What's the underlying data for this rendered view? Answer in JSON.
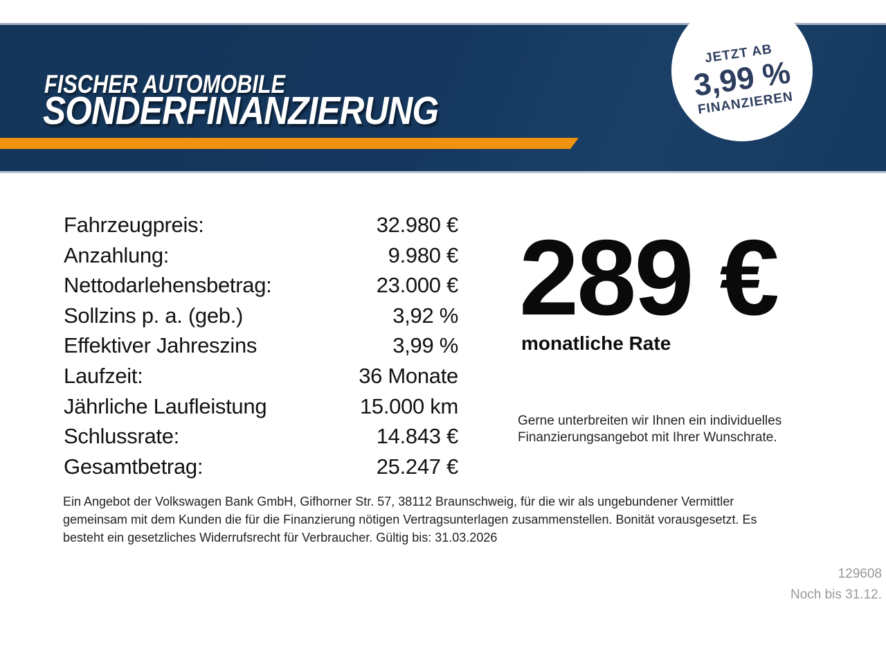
{
  "banner": {
    "dealer": "FISCHER AUTOMOBILE",
    "title": "SONDERFINANZIERUNG"
  },
  "badge": {
    "top": "JETZT AB",
    "rate": "3,99 %",
    "bottom": "FINANZIEREN"
  },
  "financing_table": {
    "rows": [
      {
        "label": "Fahrzeugpreis:",
        "value": "32.980 €"
      },
      {
        "label": "Anzahlung:",
        "value": "9.980 €"
      },
      {
        "label": "Nettodarlehensbetrag:",
        "value": "23.000 €"
      },
      {
        "label": "Sollzins p. a. (geb.)",
        "value": "3,92 %"
      },
      {
        "label": "Effektiver Jahreszins",
        "value": "3,99 %"
      },
      {
        "label": "Laufzeit:",
        "value": "36 Monate"
      },
      {
        "label": "Jährliche Laufleistung",
        "value": "15.000 km"
      },
      {
        "label": "Schlussrate:",
        "value": "14.843 €"
      },
      {
        "label": "Gesamtbetrag:",
        "value": "25.247 €"
      }
    ]
  },
  "monthly": {
    "amount": "289 €",
    "caption": "monatliche Rate"
  },
  "offer_note": {
    "lines": [
      "Gerne unterbreiten wir Ihnen ein individuelles",
      "Finanzierungsangebot mit Ihrer Wunschrate."
    ]
  },
  "disclaimer": {
    "lines": [
      "Ein Angebot der Volkswagen Bank GmbH, Gifhorner Str. 57, 38112 Braunschweig, für die wir als ungebundener Vermittler",
      "gemeinsam mit dem Kunden die für die Finanzierung nötigen Vertragsunterlagen zusammenstellen. Bonität vorausgesetzt. Es",
      "besteht ein gesetzliches Widerrufsrecht für Verbraucher. Gültig bis: 31.03.2026"
    ]
  },
  "footer": {
    "offer_id": "129608",
    "validity": "Noch bis 31.12."
  },
  "colors": {
    "navy": "#15375e",
    "orange": "#ef930f",
    "badge_text": "#2d3d5d",
    "muted_gray": "#96989c"
  }
}
